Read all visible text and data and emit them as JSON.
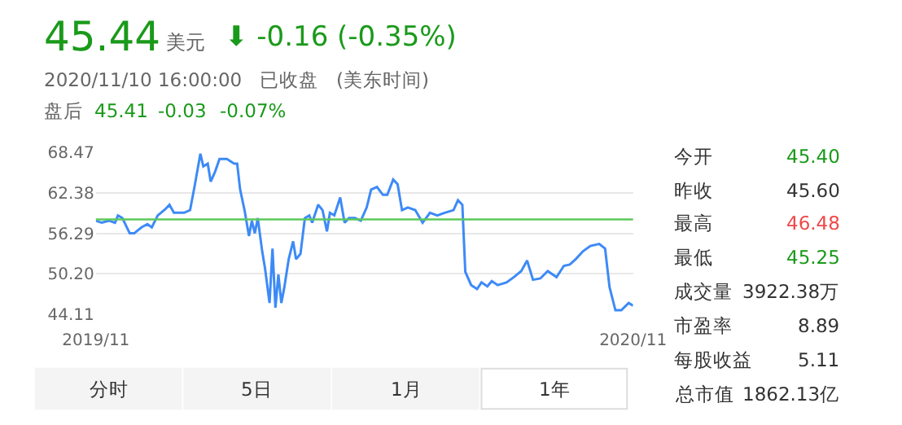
{
  "chart_data": {
    "type": "line",
    "x": [
      "2019-11-11",
      "2019-11-15",
      "2019-11-20",
      "2019-11-24",
      "2019-11-26",
      "2019-11-29",
      "2019-12-04",
      "2019-12-07",
      "2019-12-12",
      "2019-12-16",
      "2019-12-19",
      "2019-12-23",
      "2019-12-28",
      "2019-12-31",
      "2020-01-03",
      "2020-01-07",
      "2020-01-10",
      "2020-01-14",
      "2020-01-17",
      "2020-01-21",
      "2020-01-23",
      "2020-01-26",
      "2020-01-28",
      "2020-01-31",
      "2020-02-03",
      "2020-02-08",
      "2020-02-13",
      "2020-02-15",
      "2020-02-17",
      "2020-02-20",
      "2020-02-23",
      "2020-02-25",
      "2020-02-27",
      "2020-02-29",
      "2020-03-03",
      "2020-03-05",
      "2020-03-08",
      "2020-03-10",
      "2020-03-12",
      "2020-03-14",
      "2020-03-16",
      "2020-03-18",
      "2020-03-21",
      "2020-03-24",
      "2020-03-26",
      "2020-03-29",
      "2020-04-01",
      "2020-04-04",
      "2020-04-06",
      "2020-04-10",
      "2020-04-13",
      "2020-04-16",
      "2020-04-18",
      "2020-04-21",
      "2020-04-25",
      "2020-04-28",
      "2020-05-01",
      "2020-05-05",
      "2020-05-09",
      "2020-05-13",
      "2020-05-16",
      "2020-05-20",
      "2020-05-24",
      "2020-05-27",
      "2020-05-31",
      "2020-06-03",
      "2020-06-06",
      "2020-06-10",
      "2020-06-15",
      "2020-06-20",
      "2020-06-25",
      "2020-06-30",
      "2020-07-05",
      "2020-07-11",
      "2020-07-14",
      "2020-07-17",
      "2020-07-19",
      "2020-07-23",
      "2020-07-27",
      "2020-07-30",
      "2020-08-03",
      "2020-08-06",
      "2020-08-10",
      "2020-08-16",
      "2020-08-21",
      "2020-08-26",
      "2020-08-30",
      "2020-09-03",
      "2020-09-08",
      "2020-09-13",
      "2020-09-19",
      "2020-09-24",
      "2020-09-28",
      "2020-10-02",
      "2020-10-07",
      "2020-10-12",
      "2020-10-18",
      "2020-10-22",
      "2020-10-25",
      "2020-10-29",
      "2020-11-02",
      "2020-11-07",
      "2020-11-10"
    ],
    "series": [
      {
        "color": "#3d8af7",
        "values": [
          58.2,
          57.9,
          58.2,
          57.9,
          59.0,
          58.6,
          56.3,
          56.3,
          57.2,
          57.7,
          57.2,
          59.0,
          59.9,
          60.6,
          59.4,
          59.4,
          59.4,
          59.8,
          63.3,
          68.3,
          66.4,
          66.8,
          64.1,
          65.6,
          67.5,
          67.5,
          66.8,
          66.8,
          62.9,
          59.8,
          55.9,
          58.2,
          56.3,
          58.6,
          53.6,
          50.9,
          45.8,
          54.0,
          45.1,
          50.1,
          45.8,
          48.1,
          52.4,
          55.1,
          52.4,
          53.2,
          58.6,
          59.0,
          57.9,
          60.6,
          59.8,
          56.6,
          59.4,
          59.0,
          61.7,
          57.9,
          58.6,
          58.6,
          58.2,
          60.2,
          62.9,
          63.3,
          62.1,
          62.1,
          64.4,
          63.7,
          59.8,
          60.2,
          59.8,
          57.9,
          59.4,
          59.0,
          59.4,
          59.8,
          61.3,
          60.6,
          50.5,
          48.5,
          47.9,
          48.9,
          48.3,
          49.1,
          48.5,
          48.9,
          49.7,
          50.6,
          52.2,
          49.3,
          49.5,
          50.6,
          49.7,
          51.4,
          51.6,
          52.4,
          53.6,
          54.4,
          54.7,
          54.0,
          48.2,
          44.7,
          44.7,
          45.8,
          45.4
        ]
      }
    ],
    "xlim": [
      "2019-11-11",
      "2020-11-10"
    ],
    "xticks": [
      {
        "value": "2019-11-11",
        "label": "2019/11"
      },
      {
        "value": "2020-11-10",
        "label": "2020/11"
      }
    ],
    "ylim": [
      44.11,
      68.47
    ],
    "yticks": [
      44.11,
      {
        "value": 50.2,
        "label": "50.20"
      },
      56.29,
      62.38,
      68.47
    ],
    "ref_lines": [
      {
        "axis": "y",
        "value": 58.4,
        "color": "#5cc85c"
      }
    ],
    "grid": "y",
    "marker": "none",
    "line_style": "solid",
    "annotations": [
      "45.44",
      "美元",
      "⬇ -0.16 (-0.35%)",
      "2020/11/10 16:00:00   已收盘   (美东时间)",
      "盘后",
      "45.41",
      "-0.03",
      "-0.07%",
      "今开",
      "45.40",
      "昨收",
      "45.60",
      "最高",
      "46.48",
      "最低",
      "45.25",
      "成交量",
      "3922.38万",
      "市盈率",
      "8.89",
      "每股收益",
      "5.11",
      "总市值",
      "1862.13亿",
      "分时",
      "5日",
      "1月",
      "1年"
    ]
  }
}
